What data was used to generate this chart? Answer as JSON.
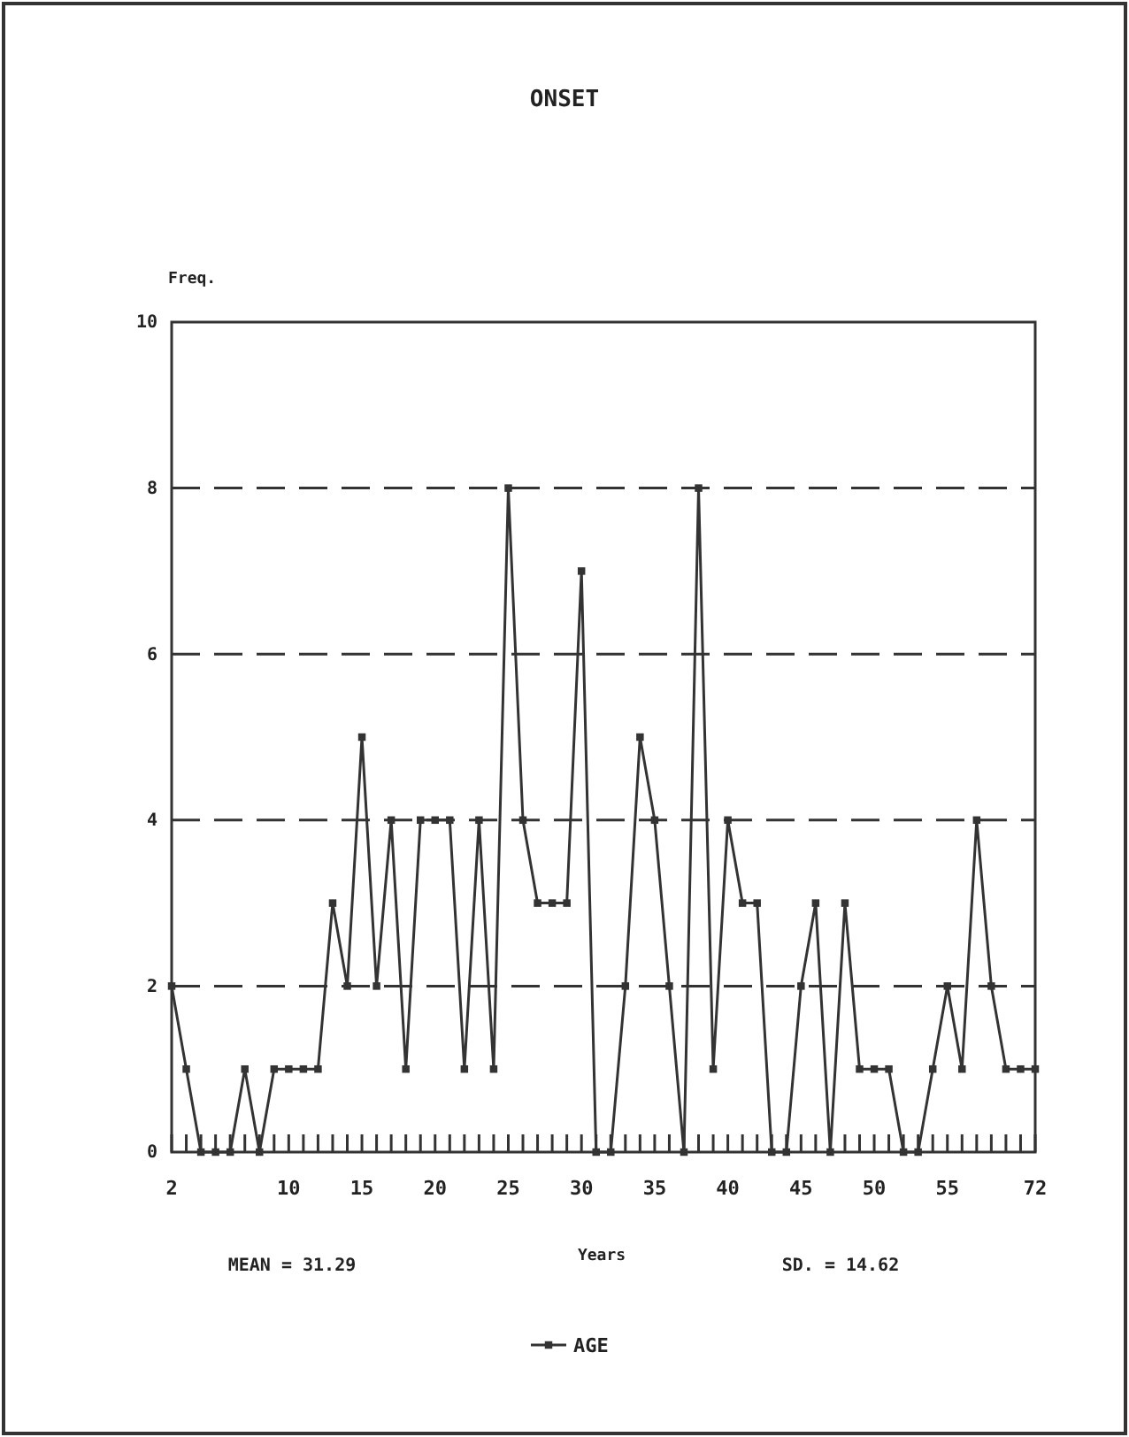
{
  "chart_data": {
    "type": "line",
    "title": "ONSET",
    "xlabel": "Years",
    "ylabel": "Freq.",
    "categories": [
      "2",
      null,
      null,
      null,
      null,
      null,
      null,
      null,
      "10",
      null,
      null,
      null,
      null,
      "15",
      null,
      null,
      null,
      null,
      "20",
      null,
      null,
      null,
      null,
      "25",
      null,
      null,
      null,
      null,
      "30",
      null,
      null,
      null,
      null,
      "35",
      null,
      null,
      null,
      null,
      "40",
      null,
      null,
      null,
      null,
      "45",
      null,
      null,
      null,
      null,
      "50",
      null,
      null,
      null,
      null,
      "55",
      null,
      null,
      null,
      null,
      null,
      "72"
    ],
    "series": [
      {
        "name": "AGE",
        "color": "#333333",
        "values": [
          2,
          1,
          0,
          0,
          0,
          1,
          0,
          1,
          1,
          1,
          1,
          3,
          2,
          5,
          2,
          4,
          1,
          4,
          4,
          4,
          1,
          4,
          1,
          8,
          4,
          3,
          3,
          3,
          7,
          0,
          0,
          2,
          5,
          4,
          2,
          0,
          8,
          1,
          4,
          3,
          3,
          0,
          0,
          2,
          3,
          0,
          3,
          1,
          1,
          1,
          0,
          0,
          1,
          2,
          1,
          4,
          2,
          1,
          1,
          1
        ]
      }
    ],
    "ylim": [
      0,
      10
    ],
    "yticks": [
      0,
      2,
      4,
      6,
      8,
      10
    ],
    "grid": "y",
    "legend": "bottom",
    "marker": "square",
    "line_style": "solid",
    "annotations": [
      "MEAN = 31.29",
      "SD. = 14.62"
    ]
  }
}
